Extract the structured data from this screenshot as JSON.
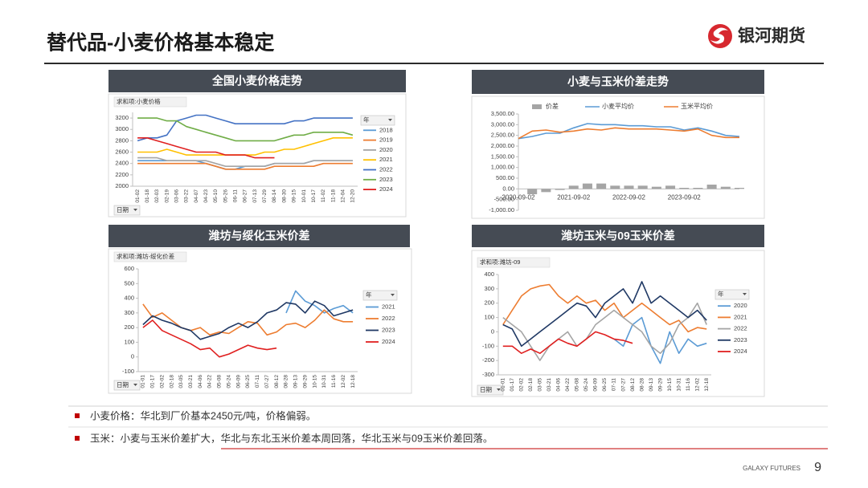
{
  "header": {
    "title": "替代品-小麦价格基本稳定",
    "logo": "银河期货"
  },
  "chart_data": [
    {
      "type": "line",
      "title": "全国小麦价格走势",
      "value_field": "求和项:小麦价格",
      "legend_title": "年",
      "x_field": "日期",
      "categories": [
        "01-02",
        "01-18",
        "02-03",
        "02-19",
        "03-06",
        "03-22",
        "04-07",
        "04-23",
        "05-10",
        "05-26",
        "06-11",
        "06-27",
        "07-13",
        "07-29",
        "08-14",
        "08-30",
        "09-15",
        "10-01",
        "10-17",
        "11-02",
        "11-18",
        "12-04",
        "12-20"
      ],
      "series": [
        {
          "name": "2018",
          "color": "#5b9bd5",
          "values": [
            2450,
            2450,
            2450,
            2450,
            2450,
            2450,
            2450,
            2400,
            2350,
            2300,
            2300,
            2350,
            2350,
            2350,
            2400,
            2400,
            2400,
            2400,
            2450,
            2450,
            2450,
            2450,
            2450
          ]
        },
        {
          "name": "2019",
          "color": "#ed7d31",
          "values": [
            2400,
            2400,
            2400,
            2400,
            2400,
            2400,
            2400,
            2400,
            2350,
            2300,
            2300,
            2300,
            2300,
            2300,
            2350,
            2350,
            2350,
            2350,
            2350,
            2400,
            2400,
            2400,
            2400
          ]
        },
        {
          "name": "2020",
          "color": "#a5a5a5",
          "values": [
            2500,
            2500,
            2500,
            2450,
            2450,
            2450,
            2450,
            2450,
            2400,
            2350,
            2350,
            2350,
            2350,
            2350,
            2400,
            2400,
            2400,
            2400,
            2450,
            2450,
            2450,
            2450,
            2450
          ]
        },
        {
          "name": "2021",
          "color": "#ffc000",
          "values": [
            2600,
            2600,
            2600,
            2650,
            2600,
            2550,
            2550,
            2550,
            2550,
            2550,
            2550,
            2550,
            2550,
            2600,
            2600,
            2650,
            2650,
            2700,
            2750,
            2800,
            2850,
            2850,
            2850
          ]
        },
        {
          "name": "2022",
          "color": "#4472c4",
          "values": [
            2800,
            2850,
            2850,
            2900,
            3150,
            3200,
            3250,
            3250,
            3200,
            3150,
            3100,
            3100,
            3100,
            3100,
            3100,
            3100,
            3150,
            3150,
            3200,
            3200,
            3200,
            3200,
            3200
          ]
        },
        {
          "name": "2023",
          "color": "#70ad47",
          "values": [
            3200,
            3200,
            3200,
            3150,
            3150,
            3050,
            3000,
            2950,
            2900,
            2850,
            2800,
            2800,
            2800,
            2800,
            2800,
            2850,
            2900,
            2900,
            2950,
            2950,
            2950,
            2950,
            2900
          ]
        },
        {
          "name": "2024",
          "color": "#e02020",
          "values": [
            2850,
            2850,
            2800,
            2750,
            2700,
            2650,
            2600,
            2600,
            2600,
            2550,
            2550,
            2550,
            2500,
            2500,
            2500,
            null,
            null,
            null,
            null,
            null,
            null,
            null,
            null
          ]
        }
      ],
      "ylim": [
        2000,
        3300
      ],
      "yticks": [
        2000,
        2200,
        2400,
        2600,
        2800,
        3000,
        3200
      ]
    },
    {
      "type": "bar-line",
      "title": "小麦与玉米价差走势",
      "categories": [
        "2020-09-02",
        null,
        null,
        null,
        "2021-09-02",
        null,
        null,
        null,
        "2022-09-02",
        null,
        null,
        null,
        "2023-09-02",
        null,
        null,
        null,
        null
      ],
      "series": [
        {
          "name": "价差",
          "type": "bar",
          "color": "#a5a5a5",
          "values": [
            0,
            -250,
            -150,
            -50,
            150,
            250,
            250,
            150,
            150,
            150,
            100,
            150,
            50,
            50,
            200,
            100,
            50
          ]
        },
        {
          "name": "小麦平均价",
          "type": "line",
          "color": "#5b9bd5",
          "values": [
            2350,
            2450,
            2600,
            2600,
            2850,
            3050,
            3000,
            3000,
            2950,
            2950,
            2900,
            2900,
            2750,
            2850,
            2700,
            2500,
            2450
          ]
        },
        {
          "name": "玉米平均价",
          "type": "line",
          "color": "#ed7d31",
          "values": [
            2350,
            2700,
            2750,
            2650,
            2700,
            2800,
            2750,
            2850,
            2800,
            2800,
            2800,
            2750,
            2700,
            2800,
            2500,
            2400,
            2400
          ]
        }
      ],
      "ylim": [
        -1000,
        3500
      ],
      "yticks": [
        {
          "value": -1000,
          "label": "-1,000.00"
        },
        {
          "value": -500,
          "label": "-500.00"
        },
        {
          "value": 0,
          "label": "0.00"
        },
        {
          "value": 500,
          "label": "500.00"
        },
        {
          "value": 1000,
          "label": "1,000.00"
        },
        {
          "value": 1500,
          "label": "1,500.00"
        },
        {
          "value": 2000,
          "label": "2,000.00"
        },
        {
          "value": 2500,
          "label": "2,500.00"
        },
        {
          "value": 3000,
          "label": "3,000.00"
        },
        {
          "value": 3500,
          "label": "3,500.00"
        }
      ]
    },
    {
      "type": "line",
      "title": "潍坊与绥化玉米价差",
      "value_field": "求和项:潍坊-绥化价差",
      "legend_title": "年",
      "x_field": "日期",
      "categories": [
        "01-01",
        "01-17",
        "02-02",
        "02-18",
        "03-05",
        "03-21",
        "04-06",
        "04-22",
        "05-08",
        "05-24",
        "06-09",
        "06-25",
        "07-11",
        "07-27",
        "08-12",
        "08-28",
        "09-13",
        "09-29",
        "10-15",
        "10-31",
        "11-16",
        "12-02",
        "12-18"
      ],
      "series": [
        {
          "name": "2021",
          "color": "#5b9bd5",
          "values": [
            null,
            null,
            null,
            null,
            null,
            null,
            null,
            null,
            null,
            null,
            null,
            null,
            null,
            null,
            null,
            300,
            450,
            380,
            350,
            300,
            330,
            350,
            300
          ]
        },
        {
          "name": "2022",
          "color": "#ed7d31",
          "values": [
            360,
            270,
            300,
            250,
            200,
            180,
            200,
            150,
            170,
            160,
            200,
            240,
            230,
            150,
            170,
            220,
            230,
            200,
            250,
            320,
            260,
            240,
            240
          ]
        },
        {
          "name": "2023",
          "color": "#1f3864",
          "values": [
            220,
            280,
            250,
            230,
            200,
            180,
            120,
            140,
            160,
            200,
            230,
            200,
            240,
            300,
            320,
            370,
            360,
            300,
            380,
            350,
            280,
            300,
            320
          ]
        },
        {
          "name": "2024",
          "color": "#e02020",
          "values": [
            200,
            250,
            180,
            150,
            120,
            90,
            50,
            60,
            0,
            20,
            50,
            80,
            60,
            50,
            60,
            null,
            null,
            null,
            null,
            null,
            null,
            null,
            null
          ]
        }
      ],
      "ylim": [
        -100,
        600
      ],
      "yticks": [
        -100,
        0,
        100,
        200,
        300,
        400,
        500,
        600
      ]
    },
    {
      "type": "line",
      "title": "潍坊玉米与09玉米价差",
      "value_field": "求和项:潍坊-09",
      "legend_title": "年",
      "x_field": "日期",
      "categories": [
        "01-01",
        "01-17",
        "02-02",
        "02-18",
        "03-05",
        "03-21",
        "04-06",
        "04-22",
        "05-08",
        "05-24",
        "06-09",
        "06-25",
        "07-11",
        "07-27",
        "08-12",
        "08-28",
        "09-13",
        "09-29",
        "10-15",
        "10-31",
        "11-16",
        "12-02",
        "12-18"
      ],
      "series": [
        {
          "name": "2020",
          "color": "#5b9bd5",
          "values": [
            null,
            null,
            null,
            null,
            null,
            null,
            null,
            null,
            null,
            null,
            null,
            null,
            -50,
            -100,
            50,
            100,
            -100,
            -220,
            0,
            -150,
            -50,
            -100,
            -80
          ]
        },
        {
          "name": "2021",
          "color": "#ed7d31",
          "values": [
            50,
            150,
            250,
            300,
            320,
            330,
            250,
            200,
            250,
            200,
            220,
            150,
            200,
            100,
            150,
            200,
            150,
            100,
            50,
            80,
            0,
            30,
            20
          ]
        },
        {
          "name": "2022",
          "color": "#a5a5a5",
          "values": [
            100,
            50,
            0,
            -100,
            -200,
            -100,
            -50,
            0,
            -100,
            -50,
            50,
            100,
            150,
            100,
            50,
            0,
            -100,
            -150,
            -80,
            50,
            100,
            200,
            50
          ]
        },
        {
          "name": "2023",
          "color": "#1f3864",
          "values": [
            50,
            20,
            -100,
            -50,
            0,
            50,
            100,
            150,
            200,
            180,
            100,
            200,
            250,
            300,
            200,
            350,
            200,
            250,
            200,
            150,
            100,
            150,
            80
          ]
        },
        {
          "name": "2024",
          "color": "#e02020",
          "values": [
            -100,
            -100,
            -150,
            -120,
            -150,
            -100,
            -50,
            -80,
            -100,
            -50,
            0,
            -20,
            -50,
            -60,
            -80,
            null,
            null,
            null,
            null,
            null,
            null,
            null,
            null
          ]
        }
      ],
      "ylim": [
        -300,
        400
      ],
      "yticks": [
        -300,
        -200,
        -100,
        0,
        100,
        200,
        300,
        400
      ]
    }
  ],
  "notes": [
    "小麦价格：华北到厂价基本2450元/吨，价格偏弱。",
    "玉米：小麦与玉米价差扩大，华北与东北玉米价差本周回落，华北玉米与09玉米价差回落。"
  ],
  "footer": {
    "brand": "GALAXY FUTURES",
    "page": "9"
  }
}
